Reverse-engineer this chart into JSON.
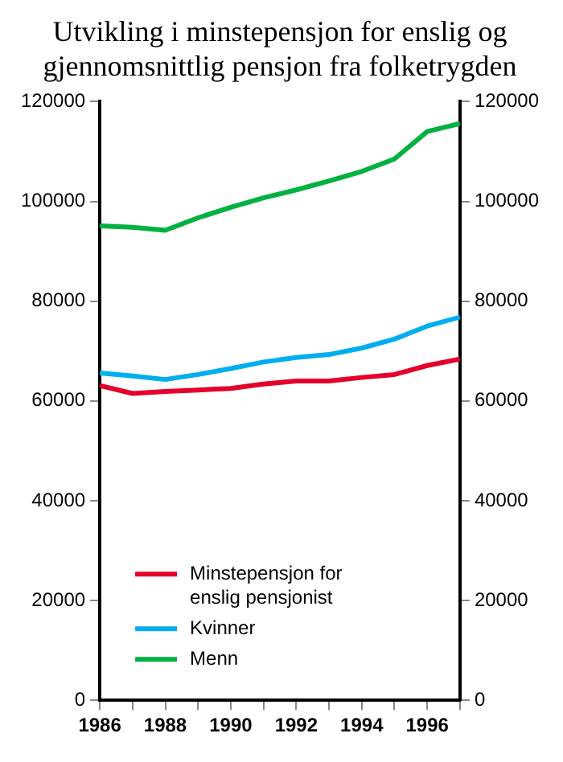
{
  "chart_data": {
    "type": "line",
    "title": "Utvikling i minstepensjon for enslig og gjennomsnittlig pensjon fra folketrygden",
    "x": [
      1986,
      1987,
      1988,
      1989,
      1990,
      1991,
      1992,
      1993,
      1994,
      1995,
      1996,
      1997
    ],
    "series": [
      {
        "name": "Minstepensjon for enslig pensjonist",
        "color": "#e4002b",
        "values": [
          63100,
          61500,
          61900,
          62200,
          62500,
          63400,
          64000,
          64000,
          64700,
          65300,
          67100,
          68400
        ]
      },
      {
        "name": "Kvinner",
        "color": "#00aeef",
        "values": [
          65600,
          65000,
          64300,
          65300,
          66500,
          67800,
          68700,
          69300,
          70600,
          72400,
          75000,
          76800
        ]
      },
      {
        "name": "Menn",
        "color": "#00b140",
        "values": [
          95100,
          94800,
          94200,
          96700,
          98800,
          100700,
          102300,
          104100,
          106000,
          108500,
          114000,
          115600
        ]
      }
    ],
    "xlim": [
      1986,
      1997
    ],
    "xticks": [
      1986,
      {
        "value": 1987,
        "label": null
      },
      1988,
      {
        "value": 1989,
        "label": null
      },
      1990,
      {
        "value": 1991,
        "label": null
      },
      1992,
      {
        "value": 1993,
        "label": null
      },
      1994,
      {
        "value": 1995,
        "label": null
      },
      1996,
      {
        "value": 1997,
        "label": null
      }
    ],
    "ylim": [
      0,
      120000
    ],
    "yticks": [
      0,
      20000,
      40000,
      60000,
      80000,
      100000,
      120000
    ],
    "y2lim": [
      0,
      120000
    ],
    "y2ticks": [
      0,
      20000,
      40000,
      60000,
      80000,
      100000,
      120000
    ],
    "grid": false,
    "legend": "bottom left",
    "marker": "none",
    "line_style": "solid"
  }
}
